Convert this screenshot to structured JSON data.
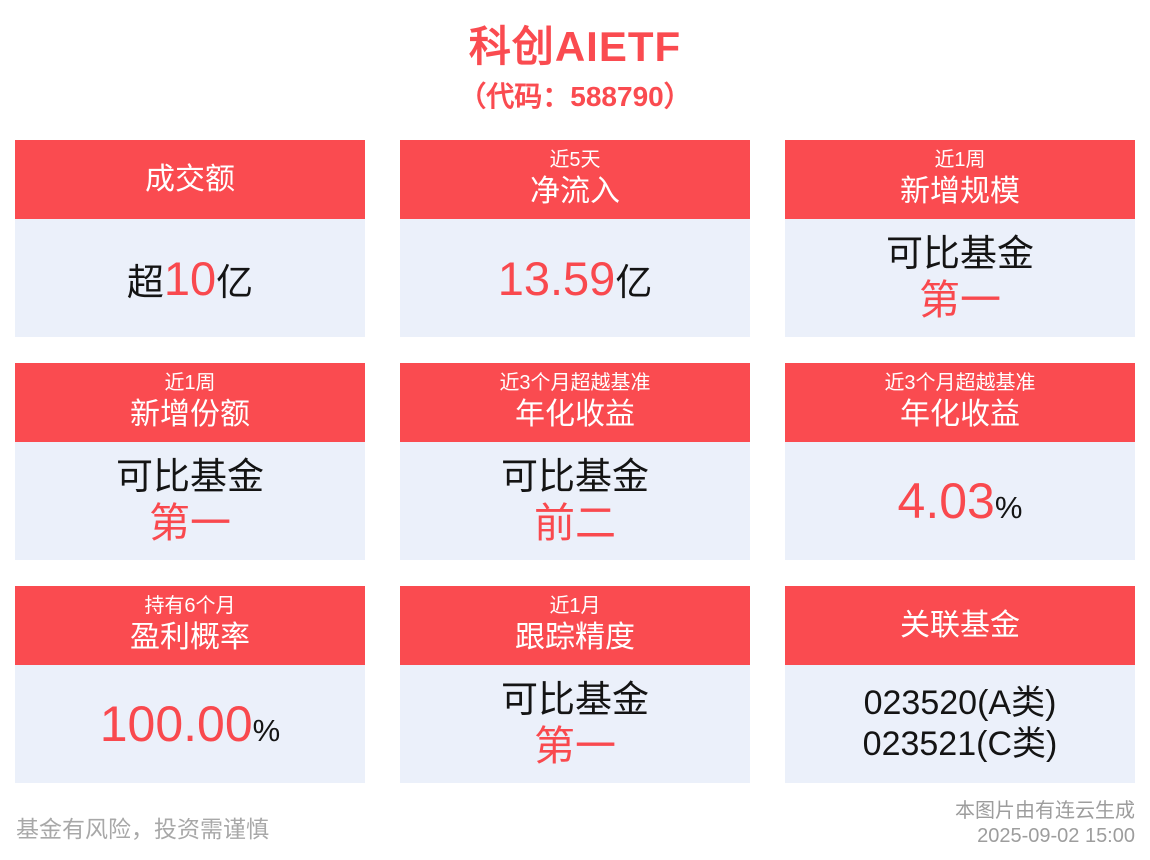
{
  "page": {
    "title": "科创AIETF",
    "subtitle": "（代码：588790）"
  },
  "colors": {
    "accent_red": "#FA4B50",
    "value_red": "#F9494E",
    "card_body_bg": "#EBF0FA",
    "text_dark": "#141414",
    "footer_gray": "#A8A8A8"
  },
  "cards": [
    {
      "header": {
        "main": "成交额"
      },
      "value": {
        "prefix": "超",
        "number": "10",
        "suffix": "亿"
      }
    },
    {
      "header": {
        "small": "近5天",
        "main": "净流入"
      },
      "value": {
        "number": "13.59",
        "suffix": "亿"
      }
    },
    {
      "header": {
        "small": "近1周",
        "main": "新增规模"
      },
      "value": {
        "line1": "可比基金",
        "line2": "第一"
      }
    },
    {
      "header": {
        "small": "近1周",
        "main": "新增份额"
      },
      "value": {
        "line1": "可比基金",
        "line2": "第一"
      }
    },
    {
      "header": {
        "small": "近3个月超越基准",
        "main": "年化收益"
      },
      "value": {
        "line1": "可比基金",
        "line2": "前二"
      }
    },
    {
      "header": {
        "small": "近3个月超越基准",
        "main": "年化收益"
      },
      "value": {
        "number": "4.03",
        "suffix": "%"
      }
    },
    {
      "header": {
        "small": "持有6个月",
        "main": "盈利概率"
      },
      "value": {
        "number": "100.00",
        "suffix": "%"
      }
    },
    {
      "header": {
        "small": "近1月",
        "main": "跟踪精度"
      },
      "value": {
        "line1": "可比基金",
        "line2": "第一"
      }
    },
    {
      "header": {
        "main": "关联基金"
      },
      "value": {
        "line1": "023520(A类)",
        "line2": "023521(C类)"
      }
    }
  ],
  "footer": {
    "disclaimer": "基金有风险，投资需谨慎",
    "source": "本图片由有连云生成",
    "timestamp": "2025-09-02 15:00"
  }
}
